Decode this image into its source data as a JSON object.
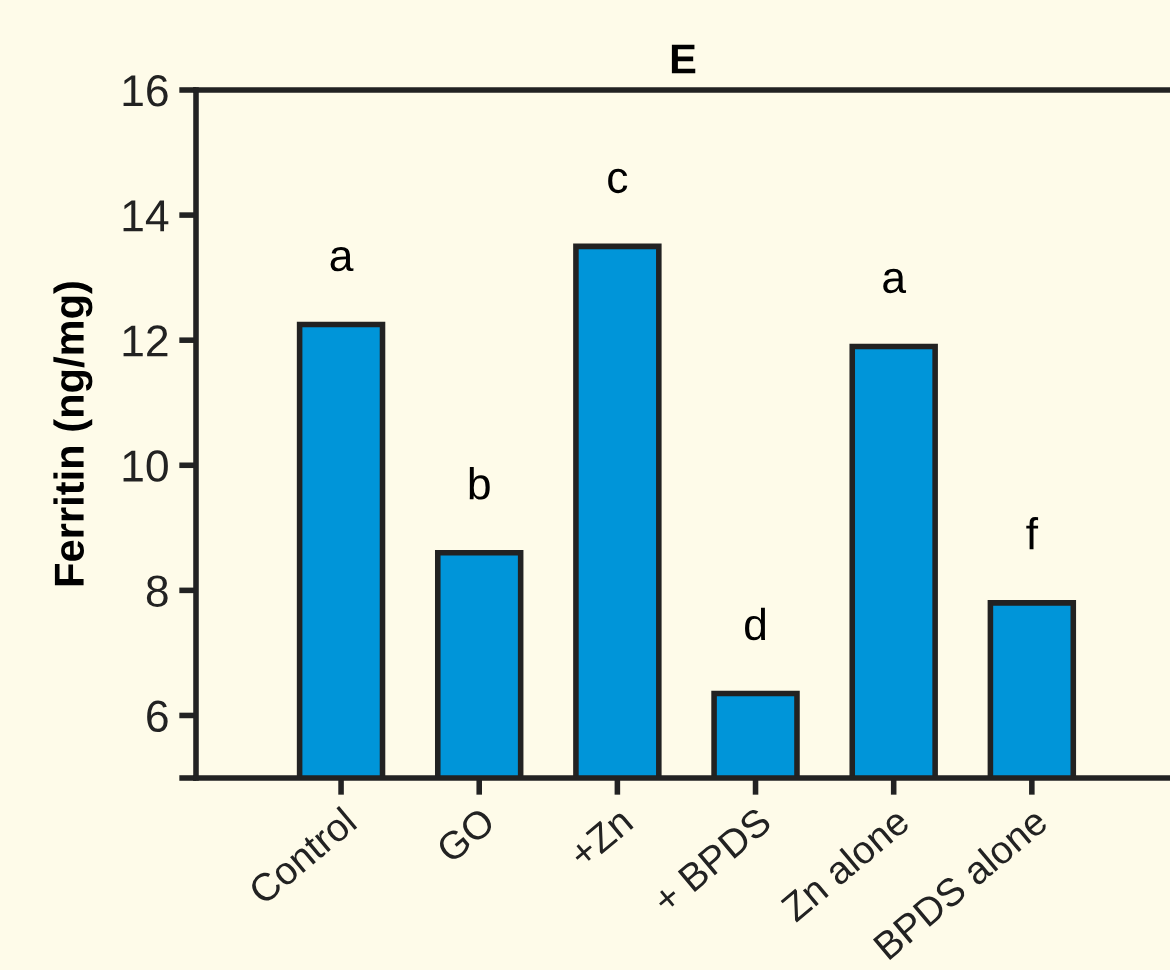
{
  "chart_data": {
    "type": "bar",
    "title": "E",
    "ylabel": "Ferritin (ng/mg)",
    "categories": [
      "Control",
      "GO",
      "+Zn",
      "+ BPDS",
      "Zn alone",
      "BPDS alone"
    ],
    "values": [
      12.25,
      8.6,
      13.5,
      6.35,
      11.9,
      7.8
    ],
    "color": "#0095d9",
    "ylim": [
      5,
      16
    ],
    "yticks": [
      {
        "value": 5,
        "label": null
      },
      6,
      8,
      10,
      12,
      14,
      16
    ],
    "grid": false,
    "value_labels": [
      "a",
      "b",
      "c",
      "d",
      "a",
      "f"
    ]
  }
}
